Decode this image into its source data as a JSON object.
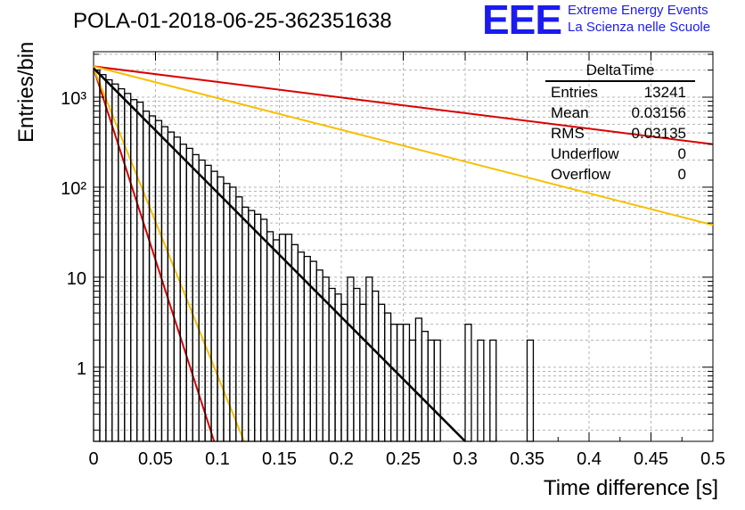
{
  "logo": {
    "mark": "EEE",
    "line1": "Extreme Energy Events",
    "line2": "La Scienza nelle Scuole"
  },
  "stats": {
    "title": "DeltaTime",
    "rows": [
      {
        "key": "Entries",
        "value": "13241"
      },
      {
        "key": "Mean",
        "value": "0.03156"
      },
      {
        "key": "RMS",
        "value": "0.03135"
      },
      {
        "key": "Underflow",
        "value": "0"
      },
      {
        "key": "Overflow",
        "value": "0"
      }
    ]
  },
  "colors": {
    "histogram": "#000000",
    "fit": "#000000",
    "red": "#d90000",
    "yellow": "#f7bf00",
    "grid": "#b4b4b4"
  },
  "chart_data": {
    "type": "line",
    "title": "POLA-01-2018-06-25-362351638",
    "xlabel": "Time difference [s]",
    "ylabel": "Entries/bin",
    "xlim": [
      0,
      0.5
    ],
    "ylim": [
      0.15,
      3200
    ],
    "yscale": "log",
    "grid": true,
    "legend": "top-right",
    "x_ticks": [
      0,
      0.05,
      0.1,
      0.15,
      0.2,
      0.25,
      0.3,
      0.35,
      0.4,
      0.45,
      0.5
    ],
    "x_tick_labels": [
      "0",
      "0.05",
      "0.1",
      "0.15",
      "0.2",
      "0.25",
      "0.3",
      "0.35",
      "0.4",
      "0.45",
      "0.5"
    ],
    "y_ticks": [
      1,
      10,
      100,
      1000
    ],
    "y_tick_labels": [
      "1",
      "10",
      "10²",
      "10³"
    ],
    "histogram": {
      "bin_width": 0.005,
      "counts": [
        2000,
        1780,
        1560,
        1400,
        1240,
        1100,
        940,
        880,
        700,
        620,
        550,
        470,
        410,
        360,
        300,
        270,
        230,
        200,
        175,
        150,
        130,
        110,
        100,
        78,
        60,
        55,
        50,
        44,
        32,
        26,
        30,
        30,
        23,
        19,
        17,
        15,
        12,
        10,
        7.5,
        6.5,
        5,
        10,
        7.5,
        5,
        10,
        7,
        5,
        4,
        3,
        3,
        3,
        2,
        3.5,
        2.5,
        2,
        2,
        0,
        0,
        0,
        0,
        3,
        0,
        2,
        0,
        2,
        0,
        0,
        0,
        0,
        0,
        2,
        0,
        0,
        0,
        0,
        0,
        0,
        0,
        0,
        0,
        0,
        0,
        0,
        0,
        0,
        0,
        0,
        0,
        0,
        0,
        0,
        0,
        0,
        0,
        0,
        0,
        0,
        0,
        0,
        0
      ]
    },
    "series": [
      {
        "values": [
          [
            0,
            2100
          ],
          [
            0.3,
            0.15
          ]
        ]
      },
      {
        "values": [
          [
            0,
            2200
          ],
          [
            0.5,
            300
          ]
        ]
      },
      {
        "values": [
          [
            0,
            2200
          ],
          [
            0.5,
            38
          ]
        ]
      },
      {
        "values": [
          [
            0,
            2100
          ],
          [
            0.0973,
            0.15
          ]
        ]
      },
      {
        "values": [
          [
            0,
            2100
          ],
          [
            0.1215,
            0.15
          ]
        ]
      }
    ]
  }
}
